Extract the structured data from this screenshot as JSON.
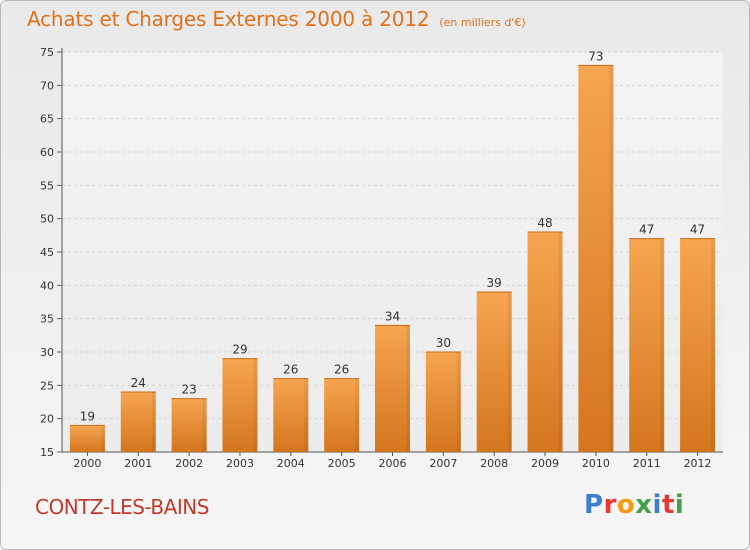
{
  "header": {
    "title": "Achats et Charges Externes 2000 à 2012",
    "unit": "(en milliers d'€)"
  },
  "footer": {
    "commune": "CONTZ-LES-BAINS",
    "logo_text": "Proxiti",
    "logo_colors": [
      "#3a7fd0",
      "#e53935",
      "#f39c12",
      "#43a047",
      "#3a7fd0",
      "#e53935",
      "#43a047"
    ]
  },
  "colors": {
    "bar_top": "#f6a550",
    "bar_bottom": "#d4761e",
    "title": "#e2711d",
    "commune": "#c0392b"
  },
  "chart_data": {
    "type": "bar",
    "categories": [
      "2000",
      "2001",
      "2002",
      "2003",
      "2004",
      "2005",
      "2006",
      "2007",
      "2008",
      "2009",
      "2010",
      "2011",
      "2012"
    ],
    "values": [
      19,
      24,
      23,
      29,
      26,
      26,
      34,
      30,
      39,
      48,
      73,
      47,
      47
    ],
    "ylim": [
      15,
      75
    ],
    "yticks": [
      15,
      20,
      25,
      30,
      35,
      40,
      45,
      50,
      55,
      60,
      65,
      70,
      75
    ],
    "grid": true,
    "legend": "none"
  }
}
